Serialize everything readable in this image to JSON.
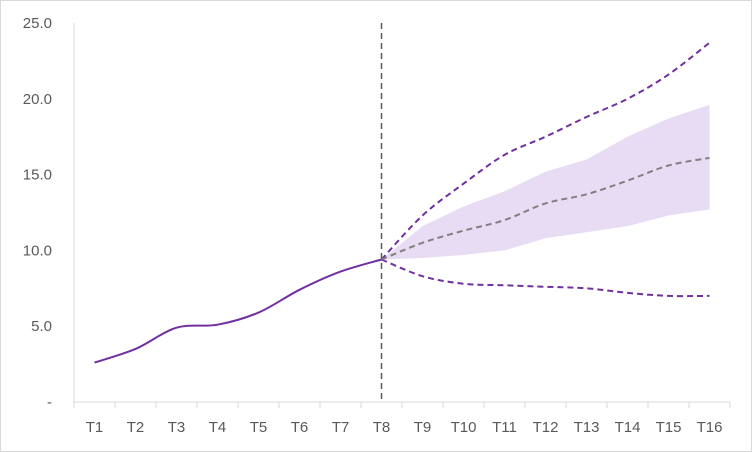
{
  "chart_data": {
    "type": "line",
    "title": "",
    "xlabel": "",
    "ylabel": "",
    "x": [
      "T1",
      "T2",
      "T3",
      "T4",
      "T5",
      "T6",
      "T7",
      "T8",
      "T9",
      "T10",
      "T11",
      "T12",
      "T13",
      "T14",
      "T15",
      "T16"
    ],
    "ylim": [
      0,
      25
    ],
    "yticks": [
      {
        "value": 0,
        "label": "-"
      },
      {
        "value": 5,
        "label": "5.0"
      },
      {
        "value": 10,
        "label": "10.0"
      },
      {
        "value": 15,
        "label": "15.0"
      },
      {
        "value": 20,
        "label": "20.0"
      },
      {
        "value": 25,
        "label": "25.0"
      }
    ],
    "grid": false,
    "legend": "none",
    "forecast_start": "T8",
    "series": [
      {
        "role": "actual",
        "style": "solid",
        "color": "#7030a0",
        "values": [
          2.6,
          3.5,
          4.9,
          5.1,
          5.9,
          7.4,
          8.6,
          9.4,
          null,
          null,
          null,
          null,
          null,
          null,
          null,
          null
        ]
      },
      {
        "role": "forecast-upper",
        "style": "dashed",
        "color": "#7030a0",
        "values": [
          null,
          null,
          null,
          null,
          null,
          null,
          null,
          9.4,
          12.3,
          14.4,
          16.3,
          17.5,
          18.8,
          20.0,
          21.6,
          23.7
        ]
      },
      {
        "role": "forecast-lower",
        "style": "dashed",
        "color": "#7030a0",
        "values": [
          null,
          null,
          null,
          null,
          null,
          null,
          null,
          9.4,
          8.3,
          7.8,
          7.7,
          7.6,
          7.5,
          7.2,
          7.0,
          7.0
        ]
      },
      {
        "role": "forecast-central",
        "style": "dashed",
        "color": "#808080",
        "values": [
          null,
          null,
          null,
          null,
          null,
          null,
          null,
          9.4,
          10.5,
          11.3,
          12.0,
          13.1,
          13.7,
          14.6,
          15.6,
          16.1
        ]
      }
    ],
    "band": {
      "color": "#e8dcf5",
      "upper": [
        null,
        null,
        null,
        null,
        null,
        null,
        null,
        9.4,
        11.6,
        12.9,
        13.9,
        15.2,
        16.0,
        17.5,
        18.7,
        19.6
      ],
      "lower": [
        null,
        null,
        null,
        null,
        null,
        null,
        null,
        9.4,
        9.5,
        9.7,
        10.0,
        10.8,
        11.2,
        11.6,
        12.3,
        12.7
      ]
    },
    "colors": {
      "axis": "#d9d9d9",
      "divider": "#595959",
      "tick_text": "#595959"
    }
  }
}
